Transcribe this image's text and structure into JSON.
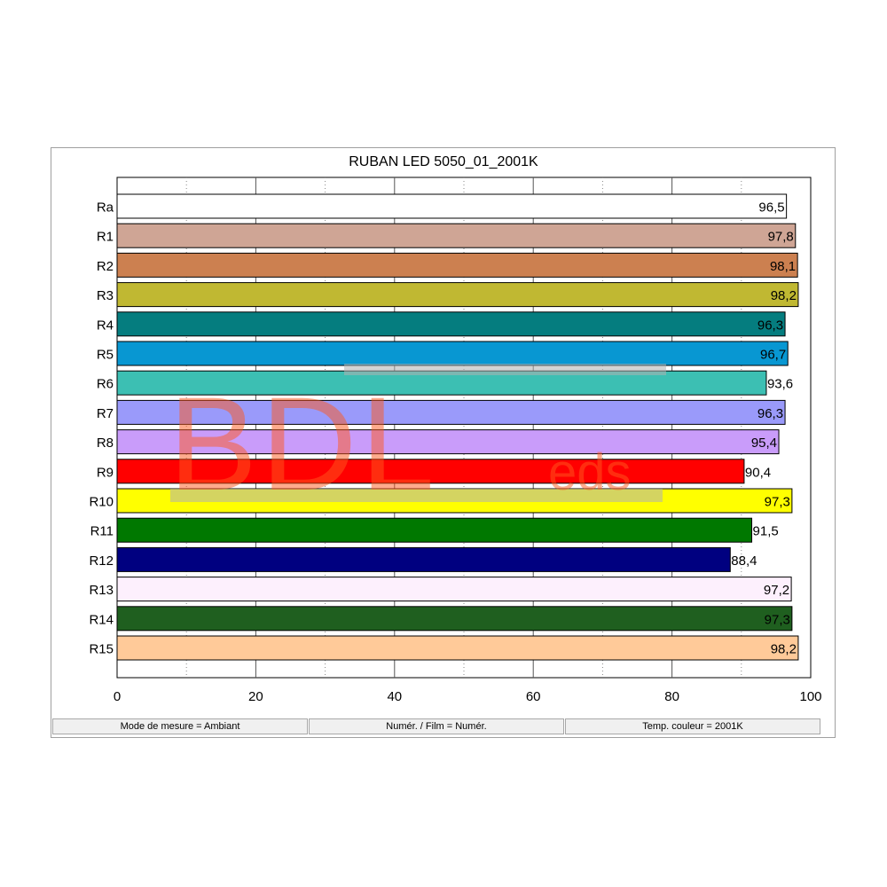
{
  "chart_data": {
    "type": "bar",
    "orientation": "horizontal",
    "title": "RUBAN LED 5050_01_2001K",
    "categories": [
      "Ra",
      "R1",
      "R2",
      "R3",
      "R4",
      "R5",
      "R6",
      "R7",
      "R8",
      "R9",
      "R10",
      "R11",
      "R12",
      "R13",
      "R14",
      "R15"
    ],
    "values": [
      96.5,
      97.8,
      98.1,
      98.2,
      96.3,
      96.7,
      93.6,
      96.3,
      95.4,
      90.4,
      97.3,
      91.5,
      88.4,
      97.2,
      97.3,
      98.2
    ],
    "value_labels": [
      "96,5",
      "97,8",
      "98,1",
      "98,2",
      "96,3",
      "96,7",
      "93,6",
      "96,3",
      "95,4",
      "90,4",
      "97,3",
      "91,5",
      "88,4",
      "97,2",
      "97,3",
      "98,2"
    ],
    "colors": [
      "#ffffff",
      "#cfa595",
      "#cc8050",
      "#c0b832",
      "#057d7f",
      "#0897d2",
      "#3cbfb3",
      "#9a9afa",
      "#c99cfa",
      "#ff0000",
      "#ffff00",
      "#007800",
      "#000080",
      "#fdf0fd",
      "#1f5f1f",
      "#ffca99"
    ],
    "xlim": [
      0,
      100
    ],
    "xticks": [
      0,
      20,
      40,
      60,
      80,
      100
    ],
    "grid": "vertical"
  },
  "status": {
    "mode": "Mode de mesure = Ambiant",
    "film": "Numér. / Film = Numér.",
    "temp": "Temp. couleur = 2001K"
  },
  "watermark": {
    "main": "BDL",
    "sub": "eds"
  }
}
